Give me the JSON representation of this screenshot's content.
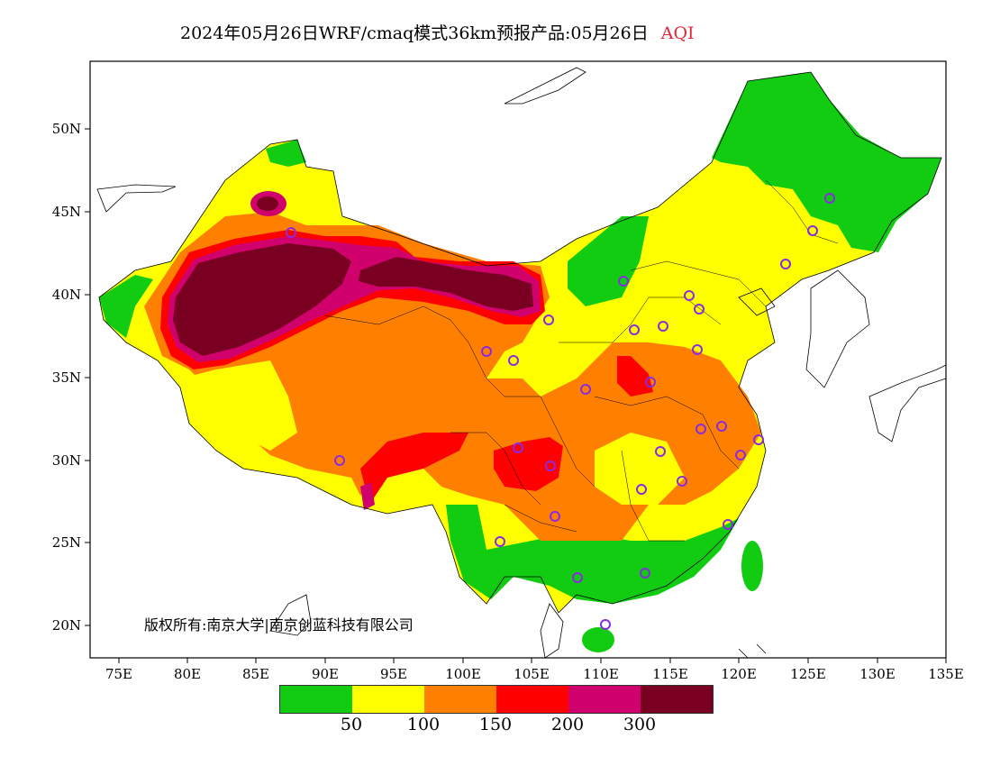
{
  "title": {
    "main": "2024年05月26日WRF/cmaq模式36km预报产品:05月26日",
    "variable": "AQI"
  },
  "copyright": "版权所有:南京大学|南京创蓝科技有限公司",
  "axes": {
    "lat_ticks": [
      "50N",
      "45N",
      "40N",
      "35N",
      "30N",
      "25N",
      "20N"
    ],
    "lon_ticks": [
      "75E",
      "80E",
      "85E",
      "90E",
      "95E",
      "100E",
      "105E",
      "110E",
      "115E",
      "120E",
      "125E",
      "130E",
      "135E"
    ]
  },
  "legend": {
    "colors": [
      "#11cc11",
      "#ffff00",
      "#ff8000",
      "#ff0000",
      "#d0006c",
      "#7a0022"
    ],
    "labels": [
      "50",
      "100",
      "150",
      "200",
      "300"
    ]
  },
  "colors": {
    "good": "#11cc11",
    "moderate": "#ffff00",
    "sensitive": "#ff8000",
    "unhealthy": "#ff0000",
    "very_unhealthy": "#d0006c",
    "hazardous": "#7a0022",
    "station_marker": "#8a2be2"
  }
}
